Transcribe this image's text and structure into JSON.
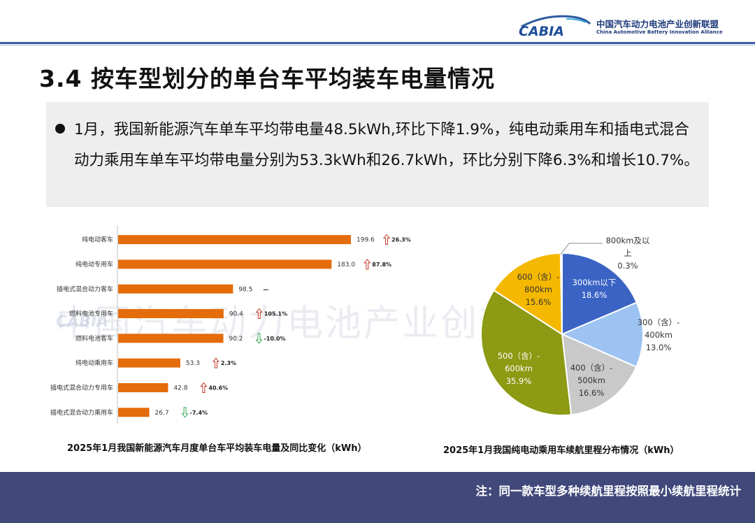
{
  "header": {
    "logo_text": "CABIA",
    "org_cn": "中国汽车动力电池产业创新联盟",
    "org_en": "China Automotive Battery Innovation Alliance"
  },
  "title": "3.4 按车型划分的单台车平均装车电量情况",
  "summary": {
    "text": "1月，我国新能源汽车单车平均带电量48.5kWh,环比下降1.9%，纯电动乘用车和插电式混合动力乘用车单车平均带电量分别为53.3kWh和26.7kWh，环比分别下降6.3%和增长10.7%。"
  },
  "watermark": "中国汽车动力电池产业创新联盟",
  "chart_data": [
    {
      "type": "bar",
      "orientation": "horizontal",
      "title": "2025年1月我国新能源汽车月度单台车平均装车电量及同比变化（kWh）",
      "categories": [
        "纯电动客车",
        "纯电动专用车",
        "插电式混合动力客车",
        "燃料电池专用车",
        "燃料电池客车",
        "纯电动乘用车",
        "插电式混合动力专用车",
        "插电式混合动力乘用车"
      ],
      "values": [
        199.6,
        183.0,
        98.5,
        90.4,
        90.2,
        53.3,
        42.8,
        26.7
      ],
      "value_labels": [
        "199.6",
        "183.0",
        "98.5",
        "90.4",
        "90.2",
        "53.3",
        "42.8",
        "26.7"
      ],
      "changes": [
        "26.3%",
        "87.8%",
        "—",
        "105.1%",
        "-10.0%",
        "2.3%",
        "40.6%",
        "-7.4%"
      ],
      "change_directions": [
        "up",
        "up",
        "flat",
        "up",
        "down",
        "up",
        "up",
        "down"
      ],
      "xlim": [
        0,
        240
      ],
      "color": "#e46c0a",
      "up_color": "#c0392b",
      "down_color": "#3aa655"
    },
    {
      "type": "pie",
      "title": "2025年1月我国纯电动乘用车续航里程分布情况（kWh）",
      "slices": [
        {
          "label_lines": [
            "300km以下",
            "18.6%"
          ],
          "value": 18.6,
          "color": "#3a63c4",
          "text_color": "#ffffff"
        },
        {
          "label_lines": [
            "300（含）-",
            "400km",
            "13.0%"
          ],
          "value": 13.0,
          "color": "#9dc3f2",
          "text_color": "#333333"
        },
        {
          "label_lines": [
            "400（含）-",
            "500km",
            "16.6%"
          ],
          "value": 16.6,
          "color": "#c9c9c9",
          "text_color": "#333333"
        },
        {
          "label_lines": [
            "500（含）-",
            "600km",
            "35.9%"
          ],
          "value": 35.9,
          "color": "#8c9a14",
          "text_color": "#ffffff"
        },
        {
          "label_lines": [
            "600（含）-",
            "800km",
            "15.6%"
          ],
          "value": 15.6,
          "color": "#f5b800",
          "text_color": "#333333"
        },
        {
          "label_lines": [
            "800km及以",
            "上",
            "0.3%"
          ],
          "value": 0.3,
          "color": "#5a5a5a",
          "text_color": "#333333"
        }
      ]
    }
  ],
  "footer": {
    "note": "注：同一款车型多种续航里程按照最小续航里程统计"
  }
}
